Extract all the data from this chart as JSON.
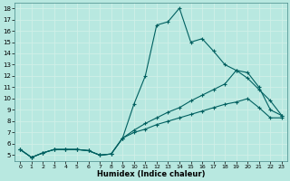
{
  "title": "",
  "xlabel": "Humidex (Indice chaleur)",
  "ylabel": "",
  "bg_color": "#b8e8e0",
  "grid_color": "#d0f0e8",
  "line_color": "#006060",
  "xlim": [
    -0.5,
    23.5
  ],
  "ylim": [
    4.5,
    18.5
  ],
  "xticks": [
    0,
    1,
    2,
    3,
    4,
    5,
    6,
    7,
    8,
    9,
    10,
    11,
    12,
    13,
    14,
    15,
    16,
    17,
    18,
    19,
    20,
    21,
    22,
    23
  ],
  "yticks": [
    5,
    6,
    7,
    8,
    9,
    10,
    11,
    12,
    13,
    14,
    15,
    16,
    17,
    18
  ],
  "series1_x": [
    0,
    1,
    2,
    3,
    4,
    5,
    6,
    7,
    8,
    9,
    10,
    11,
    12,
    13,
    14,
    15,
    16,
    17,
    18,
    19,
    20,
    21,
    22,
    23
  ],
  "series1_y": [
    5.5,
    4.8,
    5.2,
    5.5,
    5.5,
    5.5,
    5.4,
    5.0,
    5.1,
    6.5,
    9.5,
    12.0,
    16.5,
    16.8,
    18.0,
    15.0,
    15.3,
    14.2,
    13.0,
    12.5,
    11.8,
    10.8,
    9.8,
    8.5
  ],
  "series2_x": [
    0,
    1,
    2,
    3,
    4,
    5,
    6,
    7,
    8,
    9,
    10,
    11,
    12,
    13,
    14,
    15,
    16,
    17,
    18,
    19,
    20,
    21,
    22,
    23
  ],
  "series2_y": [
    5.5,
    4.8,
    5.2,
    5.5,
    5.5,
    5.5,
    5.4,
    5.0,
    5.1,
    6.5,
    7.2,
    7.8,
    8.3,
    8.8,
    9.2,
    9.8,
    10.3,
    10.8,
    11.3,
    12.5,
    12.3,
    11.0,
    9.0,
    8.5
  ],
  "series3_x": [
    0,
    1,
    2,
    3,
    4,
    5,
    6,
    7,
    8,
    9,
    10,
    11,
    12,
    13,
    14,
    15,
    16,
    17,
    18,
    19,
    20,
    21,
    22,
    23
  ],
  "series3_y": [
    5.5,
    4.8,
    5.2,
    5.5,
    5.5,
    5.5,
    5.4,
    5.0,
    5.1,
    6.5,
    7.0,
    7.3,
    7.7,
    8.0,
    8.3,
    8.6,
    8.9,
    9.2,
    9.5,
    9.7,
    10.0,
    9.2,
    8.3,
    8.3
  ]
}
